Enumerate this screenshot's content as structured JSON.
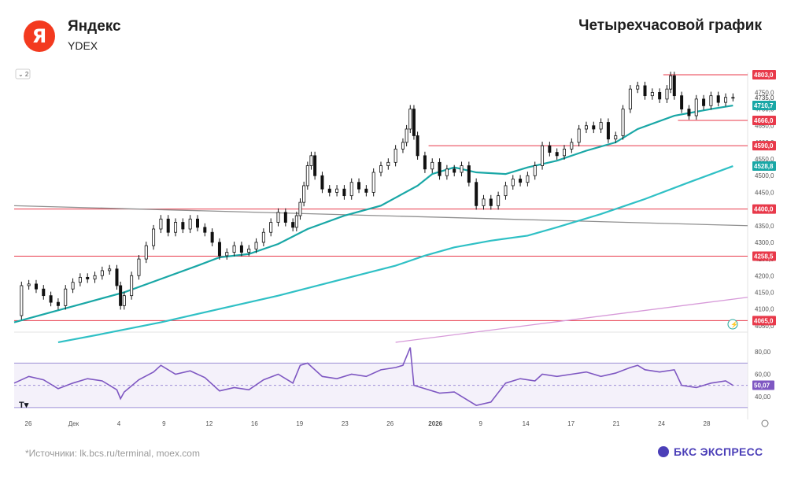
{
  "header": {
    "logo_letter": "Я",
    "company_name": "Яндекс",
    "ticker": "YDEX",
    "chart_title": "Четырехчасовой график"
  },
  "footer": {
    "sources": "*Источники: lk.bcs.ru/terminal, moex.com",
    "brand": "БКС ЭКСПРЕСС",
    "brand_color": "#4b3fb8"
  },
  "chart_data": [
    {
      "type": "candlestick",
      "timeframe": "4h",
      "x_tick_labels": [
        "26",
        "Дек",
        "4",
        "9",
        "12",
        "16",
        "19",
        "23",
        "26",
        "2026",
        "9",
        "14",
        "17",
        "21",
        "24",
        "28"
      ],
      "y_tick_labels": [
        "4750,0",
        "4700,0",
        "4650,0",
        "4600,0",
        "4550,0",
        "4500,0",
        "4450,0",
        "4400,0",
        "4350,0",
        "4300,0",
        "4250,0",
        "4200,0",
        "4150,0",
        "4100,0",
        "4050,0"
      ],
      "ylim": [
        4040,
        4810
      ],
      "current_price": "4735,0",
      "price_labels": [
        {
          "text": "4803,0",
          "value": 4803,
          "color": "#e8394a"
        },
        {
          "text": "4710,7",
          "value": 4710.7,
          "color": "#19a7a6"
        },
        {
          "text": "4666,0",
          "value": 4666,
          "color": "#e8394a"
        },
        {
          "text": "4590,0",
          "value": 4590,
          "color": "#e8394a"
        },
        {
          "text": "4528,8",
          "value": 4528.8,
          "color": "#19a7a6"
        },
        {
          "text": "4400,0",
          "value": 4400,
          "color": "#e8394a"
        },
        {
          "text": "4258,5",
          "value": 4258.5,
          "color": "#e8394a"
        },
        {
          "text": "4065,0",
          "value": 4065,
          "color": "#e8394a"
        }
      ],
      "levels": [
        {
          "value": 4803,
          "from_x": 0.885,
          "color": "#e8394a"
        },
        {
          "value": 4666,
          "from_x": 0.905,
          "color": "#e8394a"
        },
        {
          "value": 4590,
          "from_x": 0.565,
          "color": "#e8394a"
        },
        {
          "value": 4400,
          "from_x": 0.0,
          "color": "#e8394a"
        },
        {
          "value": 4258.5,
          "from_x": 0.0,
          "color": "#e8394a"
        },
        {
          "value": 4065,
          "from_x": 0.0,
          "color": "#e8394a"
        }
      ],
      "moving_averages": [
        {
          "label": "4710,7",
          "color": "#19a7a6",
          "points": [
            [
              0,
              4060
            ],
            [
              0.05,
              4090
            ],
            [
              0.1,
              4120
            ],
            [
              0.15,
              4150
            ],
            [
              0.2,
              4190
            ],
            [
              0.25,
              4230
            ],
            [
              0.28,
              4255
            ],
            [
              0.32,
              4265
            ],
            [
              0.36,
              4295
            ],
            [
              0.4,
              4340
            ],
            [
              0.45,
              4380
            ],
            [
              0.5,
              4410
            ],
            [
              0.55,
              4470
            ],
            [
              0.57,
              4505
            ],
            [
              0.6,
              4525
            ],
            [
              0.63,
              4510
            ],
            [
              0.67,
              4505
            ],
            [
              0.7,
              4525
            ],
            [
              0.74,
              4545
            ],
            [
              0.78,
              4575
            ],
            [
              0.82,
              4600
            ],
            [
              0.85,
              4640
            ],
            [
              0.9,
              4680
            ],
            [
              0.95,
              4700
            ],
            [
              0.98,
              4710.7
            ]
          ]
        },
        {
          "label": "4528,8",
          "color": "#2fc0c5",
          "points": [
            [
              0.06,
              4000
            ],
            [
              0.12,
              4025
            ],
            [
              0.2,
              4060
            ],
            [
              0.28,
              4100
            ],
            [
              0.36,
              4140
            ],
            [
              0.44,
              4185
            ],
            [
              0.52,
              4230
            ],
            [
              0.56,
              4260
            ],
            [
              0.6,
              4285
            ],
            [
              0.65,
              4305
            ],
            [
              0.7,
              4320
            ],
            [
              0.74,
              4345
            ],
            [
              0.8,
              4385
            ],
            [
              0.86,
              4430
            ],
            [
              0.92,
              4480
            ],
            [
              0.98,
              4528.8
            ]
          ]
        }
      ],
      "trend_lines": [
        {
          "color": "#8f8f8f",
          "points": [
            [
              0,
              4410
            ],
            [
              1,
              4350
            ]
          ]
        },
        {
          "color": "#d79ad9",
          "points": [
            [
              0.52,
              4000
            ],
            [
              1,
              4135
            ]
          ]
        }
      ],
      "series": [
        {
          "name": "",
          "points": [
            [
              0,
              4080
            ],
            [
              0.01,
              4170
            ],
            [
              0.02,
              4175
            ],
            [
              0.03,
              4160
            ],
            [
              0.04,
              4140
            ],
            [
              0.05,
              4120
            ],
            [
              0.06,
              4110
            ],
            [
              0.07,
              4160
            ],
            [
              0.08,
              4180
            ],
            [
              0.09,
              4195
            ],
            [
              0.1,
              4190
            ],
            [
              0.11,
              4200
            ],
            [
              0.12,
              4215
            ],
            [
              0.13,
              4220
            ],
            [
              0.14,
              4170
            ],
            [
              0.145,
              4110
            ],
            [
              0.15,
              4140
            ],
            [
              0.16,
              4200
            ],
            [
              0.17,
              4250
            ],
            [
              0.18,
              4290
            ],
            [
              0.19,
              4340
            ],
            [
              0.2,
              4370
            ],
            [
              0.21,
              4330
            ],
            [
              0.22,
              4360
            ],
            [
              0.23,
              4340
            ],
            [
              0.24,
              4370
            ],
            [
              0.25,
              4345
            ],
            [
              0.26,
              4330
            ],
            [
              0.27,
              4300
            ],
            [
              0.28,
              4260
            ],
            [
              0.29,
              4270
            ],
            [
              0.3,
              4290
            ],
            [
              0.31,
              4270
            ],
            [
              0.32,
              4280
            ],
            [
              0.33,
              4300
            ],
            [
              0.34,
              4330
            ],
            [
              0.35,
              4360
            ],
            [
              0.36,
              4390
            ],
            [
              0.37,
              4360
            ],
            [
              0.38,
              4345
            ],
            [
              0.385,
              4380
            ],
            [
              0.39,
              4420
            ],
            [
              0.395,
              4470
            ],
            [
              0.4,
              4530
            ],
            [
              0.405,
              4560
            ],
            [
              0.41,
              4500
            ],
            [
              0.42,
              4460
            ],
            [
              0.43,
              4450
            ],
            [
              0.44,
              4460
            ],
            [
              0.45,
              4440
            ],
            [
              0.46,
              4480
            ],
            [
              0.47,
              4460
            ],
            [
              0.48,
              4450
            ],
            [
              0.49,
              4510
            ],
            [
              0.5,
              4530
            ],
            [
              0.51,
              4540
            ],
            [
              0.52,
              4580
            ],
            [
              0.53,
              4600
            ],
            [
              0.535,
              4640
            ],
            [
              0.54,
              4700
            ],
            [
              0.545,
              4620
            ],
            [
              0.55,
              4560
            ],
            [
              0.56,
              4520
            ],
            [
              0.57,
              4540
            ],
            [
              0.58,
              4500
            ],
            [
              0.59,
              4520
            ],
            [
              0.6,
              4510
            ],
            [
              0.61,
              4530
            ],
            [
              0.62,
              4480
            ],
            [
              0.63,
              4410
            ],
            [
              0.64,
              4430
            ],
            [
              0.65,
              4410
            ],
            [
              0.66,
              4440
            ],
            [
              0.67,
              4470
            ],
            [
              0.68,
              4490
            ],
            [
              0.69,
              4480
            ],
            [
              0.7,
              4500
            ],
            [
              0.71,
              4530
            ],
            [
              0.72,
              4590
            ],
            [
              0.73,
              4570
            ],
            [
              0.74,
              4560
            ],
            [
              0.75,
              4580
            ],
            [
              0.76,
              4600
            ],
            [
              0.77,
              4640
            ],
            [
              0.78,
              4650
            ],
            [
              0.79,
              4640
            ],
            [
              0.8,
              4660
            ],
            [
              0.81,
              4610
            ],
            [
              0.82,
              4620
            ],
            [
              0.83,
              4700
            ],
            [
              0.84,
              4760
            ],
            [
              0.85,
              4770
            ],
            [
              0.86,
              4740
            ],
            [
              0.87,
              4750
            ],
            [
              0.88,
              4730
            ],
            [
              0.89,
              4760
            ],
            [
              0.895,
              4800
            ],
            [
              0.9,
              4740
            ],
            [
              0.91,
              4700
            ],
            [
              0.92,
              4680
            ],
            [
              0.93,
              4730
            ],
            [
              0.94,
              4710
            ],
            [
              0.95,
              4740
            ],
            [
              0.96,
              4720
            ],
            [
              0.97,
              4735
            ],
            [
              0.98,
              4735
            ]
          ]
        }
      ]
    },
    {
      "type": "line",
      "indicator": "RSI",
      "y_tick_labels": [
        "80,00",
        "60,00",
        "40,00"
      ],
      "ylim": [
        25,
        95
      ],
      "band": [
        30,
        70
      ],
      "midline": 50,
      "current_value": "50,07",
      "line_color": "#7e57c2",
      "values": [
        [
          0,
          52
        ],
        [
          0.02,
          58
        ],
        [
          0.04,
          55
        ],
        [
          0.06,
          47
        ],
        [
          0.08,
          52
        ],
        [
          0.1,
          56
        ],
        [
          0.12,
          54
        ],
        [
          0.14,
          46
        ],
        [
          0.145,
          38
        ],
        [
          0.15,
          44
        ],
        [
          0.17,
          55
        ],
        [
          0.19,
          62
        ],
        [
          0.2,
          68
        ],
        [
          0.22,
          60
        ],
        [
          0.24,
          63
        ],
        [
          0.26,
          57
        ],
        [
          0.28,
          45
        ],
        [
          0.3,
          48
        ],
        [
          0.32,
          46
        ],
        [
          0.34,
          55
        ],
        [
          0.36,
          60
        ],
        [
          0.38,
          52
        ],
        [
          0.39,
          68
        ],
        [
          0.4,
          70
        ],
        [
          0.42,
          58
        ],
        [
          0.44,
          56
        ],
        [
          0.46,
          60
        ],
        [
          0.48,
          58
        ],
        [
          0.5,
          64
        ],
        [
          0.52,
          66
        ],
        [
          0.53,
          68
        ],
        [
          0.54,
          84
        ],
        [
          0.545,
          50
        ],
        [
          0.56,
          47
        ],
        [
          0.58,
          43
        ],
        [
          0.6,
          44
        ],
        [
          0.62,
          36
        ],
        [
          0.63,
          32
        ],
        [
          0.65,
          35
        ],
        [
          0.67,
          52
        ],
        [
          0.69,
          56
        ],
        [
          0.71,
          54
        ],
        [
          0.72,
          60
        ],
        [
          0.74,
          58
        ],
        [
          0.76,
          60
        ],
        [
          0.78,
          62
        ],
        [
          0.8,
          58
        ],
        [
          0.82,
          61
        ],
        [
          0.84,
          66
        ],
        [
          0.85,
          68
        ],
        [
          0.86,
          64
        ],
        [
          0.88,
          62
        ],
        [
          0.9,
          64
        ],
        [
          0.91,
          50
        ],
        [
          0.93,
          48
        ],
        [
          0.95,
          52
        ],
        [
          0.97,
          54
        ],
        [
          0.98,
          50
        ]
      ]
    }
  ]
}
